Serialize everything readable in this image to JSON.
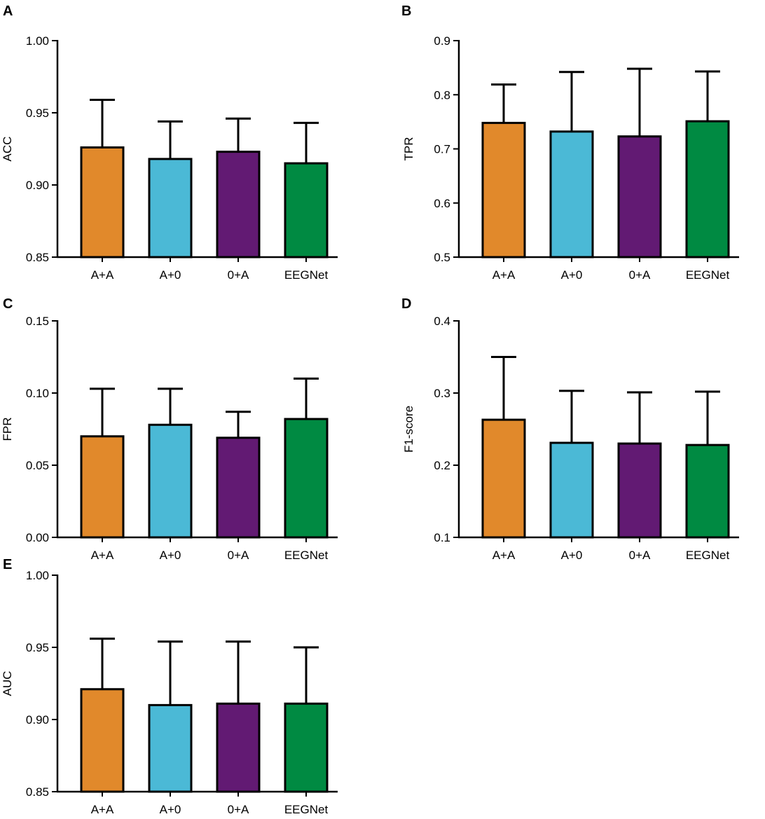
{
  "colors": {
    "A+A": "#e1892b",
    "A+0": "#4bb9d6",
    "0+A": "#621a73",
    "EEGNet": "#008a42",
    "outline": "#000000"
  },
  "chart_data": [
    {
      "panel": "A",
      "type": "bar",
      "ylabel": "ACC",
      "categories": [
        "A+A",
        "A+0",
        "0+A",
        "EEGNet"
      ],
      "values": [
        0.926,
        0.918,
        0.923,
        0.915
      ],
      "errors": [
        0.033,
        0.026,
        0.023,
        0.028
      ],
      "ylim": [
        0.85,
        1.0
      ],
      "ticks": [
        0.85,
        0.9,
        0.95,
        1.0
      ],
      "tick_labels": [
        "0.85",
        "0.90",
        "0.95",
        "1.00"
      ]
    },
    {
      "panel": "B",
      "type": "bar",
      "ylabel": "TPR",
      "categories": [
        "A+A",
        "A+0",
        "0+A",
        "EEGNet"
      ],
      "values": [
        0.748,
        0.732,
        0.723,
        0.751
      ],
      "errors": [
        0.071,
        0.11,
        0.125,
        0.092
      ],
      "ylim": [
        0.5,
        0.9
      ],
      "ticks": [
        0.5,
        0.6,
        0.7,
        0.8,
        0.9
      ],
      "tick_labels": [
        "0.5",
        "0.6",
        "0.7",
        "0.8",
        "0.9"
      ]
    },
    {
      "panel": "C",
      "type": "bar",
      "ylabel": "FPR",
      "categories": [
        "A+A",
        "A+0",
        "0+A",
        "EEGNet"
      ],
      "values": [
        0.07,
        0.078,
        0.069,
        0.082
      ],
      "errors": [
        0.033,
        0.025,
        0.018,
        0.028
      ],
      "ylim": [
        0.0,
        0.15
      ],
      "ticks": [
        0.0,
        0.05,
        0.1,
        0.15
      ],
      "tick_labels": [
        "0.00",
        "0.05",
        "0.10",
        "0.15"
      ]
    },
    {
      "panel": "D",
      "type": "bar",
      "ylabel": "F1-score",
      "categories": [
        "A+A",
        "A+0",
        "0+A",
        "EEGNet"
      ],
      "values": [
        0.263,
        0.231,
        0.23,
        0.228
      ],
      "errors": [
        0.087,
        0.072,
        0.071,
        0.074
      ],
      "ylim": [
        0.1,
        0.4
      ],
      "ticks": [
        0.1,
        0.2,
        0.3,
        0.4
      ],
      "tick_labels": [
        "0.1",
        "0.2",
        "0.3",
        "0.4"
      ]
    },
    {
      "panel": "E",
      "type": "bar",
      "ylabel": "AUC",
      "categories": [
        "A+A",
        "A+0",
        "0+A",
        "EEGNet"
      ],
      "values": [
        0.921,
        0.91,
        0.911,
        0.911
      ],
      "errors": [
        0.035,
        0.044,
        0.043,
        0.039
      ],
      "ylim": [
        0.85,
        1.0
      ],
      "ticks": [
        0.85,
        0.9,
        0.95,
        1.0
      ],
      "tick_labels": [
        "0.85",
        "0.90",
        "0.95",
        "1.00"
      ]
    }
  ]
}
